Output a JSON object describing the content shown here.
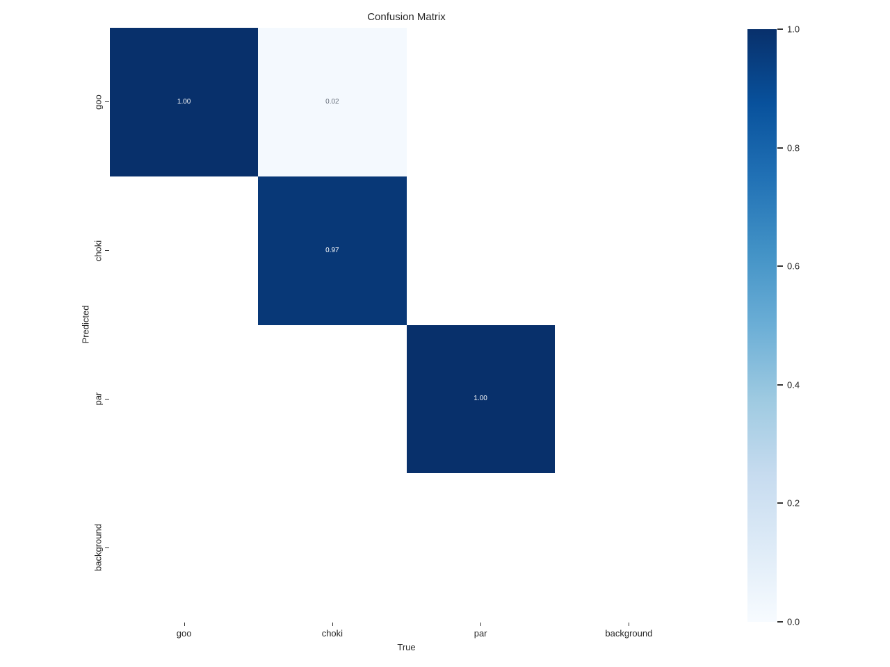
{
  "chart_data": {
    "type": "heatmap",
    "title": "Confusion Matrix",
    "xlabel": "True",
    "ylabel": "Predicted",
    "x_categories": [
      "goo",
      "choki",
      "par",
      "background"
    ],
    "y_categories": [
      "goo",
      "choki",
      "par",
      "background"
    ],
    "vmin": 0.0,
    "vmax": 1.0,
    "colormap": "Blues",
    "grid": false,
    "matrix": [
      [
        1.0,
        0.02,
        null,
        null
      ],
      [
        null,
        0.97,
        null,
        null
      ],
      [
        null,
        null,
        1.0,
        null
      ],
      [
        null,
        null,
        null,
        null
      ]
    ],
    "annotations": [
      [
        "1.00",
        "0.02",
        null,
        null
      ],
      [
        null,
        "0.97",
        null,
        null
      ],
      [
        null,
        null,
        "1.00",
        null
      ],
      [
        null,
        null,
        null,
        null
      ]
    ],
    "cell_bg": [
      [
        "#08306b",
        "#f4f9fe",
        "#ffffff",
        "#ffffff"
      ],
      [
        "#ffffff",
        "#083877",
        "#ffffff",
        "#ffffff"
      ],
      [
        "#ffffff",
        "#ffffff",
        "#08306b",
        "#ffffff"
      ],
      [
        "#ffffff",
        "#ffffff",
        "#ffffff",
        "#ffffff"
      ]
    ],
    "cell_fg": [
      [
        "#ffffff",
        "#646c78",
        null,
        null
      ],
      [
        null,
        "#ffffff",
        null,
        null
      ],
      [
        null,
        null,
        "#ffffff",
        null
      ],
      [
        null,
        null,
        null,
        null
      ]
    ],
    "colorbar": {
      "position": "right",
      "tick_labels": [
        "1.0",
        "0.8",
        "0.6",
        "0.4",
        "0.2",
        "0.0"
      ],
      "gradient_stops_low_to_high": [
        "#f7fbff",
        "#deebf7",
        "#c6dbef",
        "#9ecae1",
        "#6baed6",
        "#4292c6",
        "#2171b5",
        "#08519c",
        "#08306b"
      ]
    },
    "colors": {
      "background": "#ffffff",
      "text": "#262626",
      "tick": "#333333",
      "cmap_max": "#08306b",
      "cmap_min": "#f7fbff"
    }
  }
}
